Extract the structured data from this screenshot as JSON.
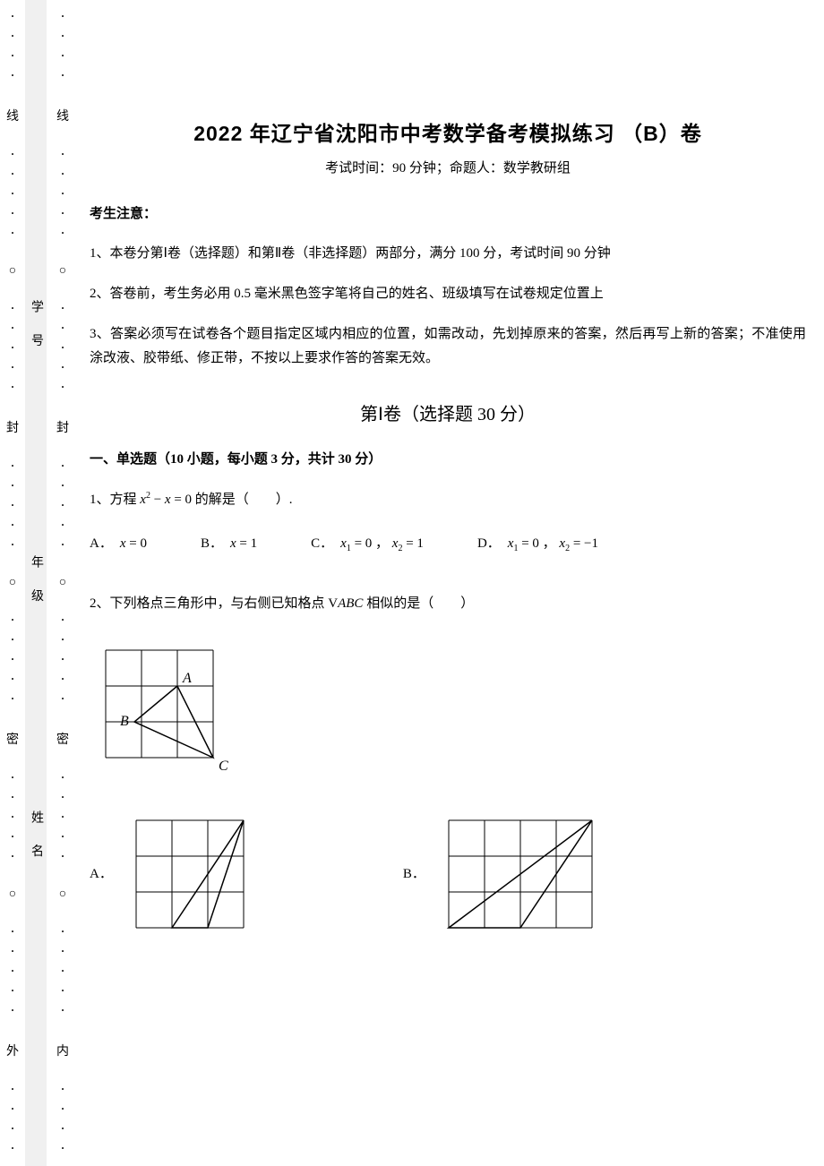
{
  "margin": {
    "outer_chars": [
      "线",
      "封",
      "密",
      "外"
    ],
    "gray_chars": [
      "学 号",
      "年 级",
      "姓 名"
    ],
    "inner_chars": [
      "线",
      "封",
      "密",
      "内"
    ]
  },
  "title": "2022 年辽宁省沈阳市中考数学备考模拟练习 （B）卷",
  "subtitle": "考试时间：90 分钟；命题人：数学教研组",
  "instructions_header": "考生注意：",
  "instructions": [
    "1、本卷分第Ⅰ卷（选择题）和第Ⅱ卷（非选择题）两部分，满分 100 分，考试时间 90 分钟",
    "2、答卷前，考生务必用 0.5 毫米黑色签字笔将自己的姓名、班级填写在试卷规定位置上",
    "3、答案必须写在试卷各个题目指定区域内相应的位置，如需改动，先划掉原来的答案，然后再写上新的答案；不准使用涂改液、胶带纸、修正带，不按以上要求作答的答案无效。"
  ],
  "section_header": "第Ⅰ卷（选择题  30 分）",
  "question_section_header": "一、单选题（10 小题，每小题 3 分，共计 30 分）",
  "q1": {
    "prefix": "1、方程 ",
    "equation": "x² − x = 0",
    "suffix": " 的解是（　　）.",
    "options": {
      "A": "x = 0",
      "B": "x = 1",
      "C_part1": "x₁ = 0",
      "C_part2": "x₂ = 1",
      "D_part1": "x₁ = 0",
      "D_part2": "x₂ = −1"
    }
  },
  "q2": {
    "prefix": "2、下列格点三角形中，与右侧已知格点 ",
    "middle": "△ABC",
    "suffix": " 相似的是（　　）",
    "mainFigure": {
      "type": "grid-triangle",
      "cols": 3,
      "rows": 3,
      "cell": 40,
      "grid_color": "#000000",
      "stroke": "#000000",
      "labels": {
        "A": [
          2,
          1
        ],
        "B": [
          0.8,
          2
        ],
        "C": [
          3,
          3
        ]
      },
      "triangle": [
        [
          2,
          1
        ],
        [
          0.8,
          2
        ],
        [
          3,
          3
        ]
      ],
      "label_offsets": {
        "A": [
          6,
          -4
        ],
        "B": [
          -16,
          4
        ],
        "C": [
          6,
          14
        ]
      }
    },
    "options": {
      "A": {
        "type": "grid-triangle",
        "cols": 3,
        "rows": 3,
        "cell": 40,
        "grid_color": "#000000",
        "stroke": "#000000",
        "triangle": [
          [
            1,
            3
          ],
          [
            3,
            0
          ],
          [
            2,
            3
          ]
        ]
      },
      "B": {
        "type": "grid-triangle",
        "cols": 4,
        "rows": 3,
        "cell": 40,
        "grid_color": "#000000",
        "stroke": "#000000",
        "triangle": [
          [
            0,
            3
          ],
          [
            4,
            0
          ],
          [
            2,
            3
          ]
        ]
      }
    }
  },
  "style": {
    "body_font_size": 15,
    "title_font_size": 23,
    "section_font_size": 20,
    "background": "#ffffff",
    "text_color": "#000000"
  }
}
